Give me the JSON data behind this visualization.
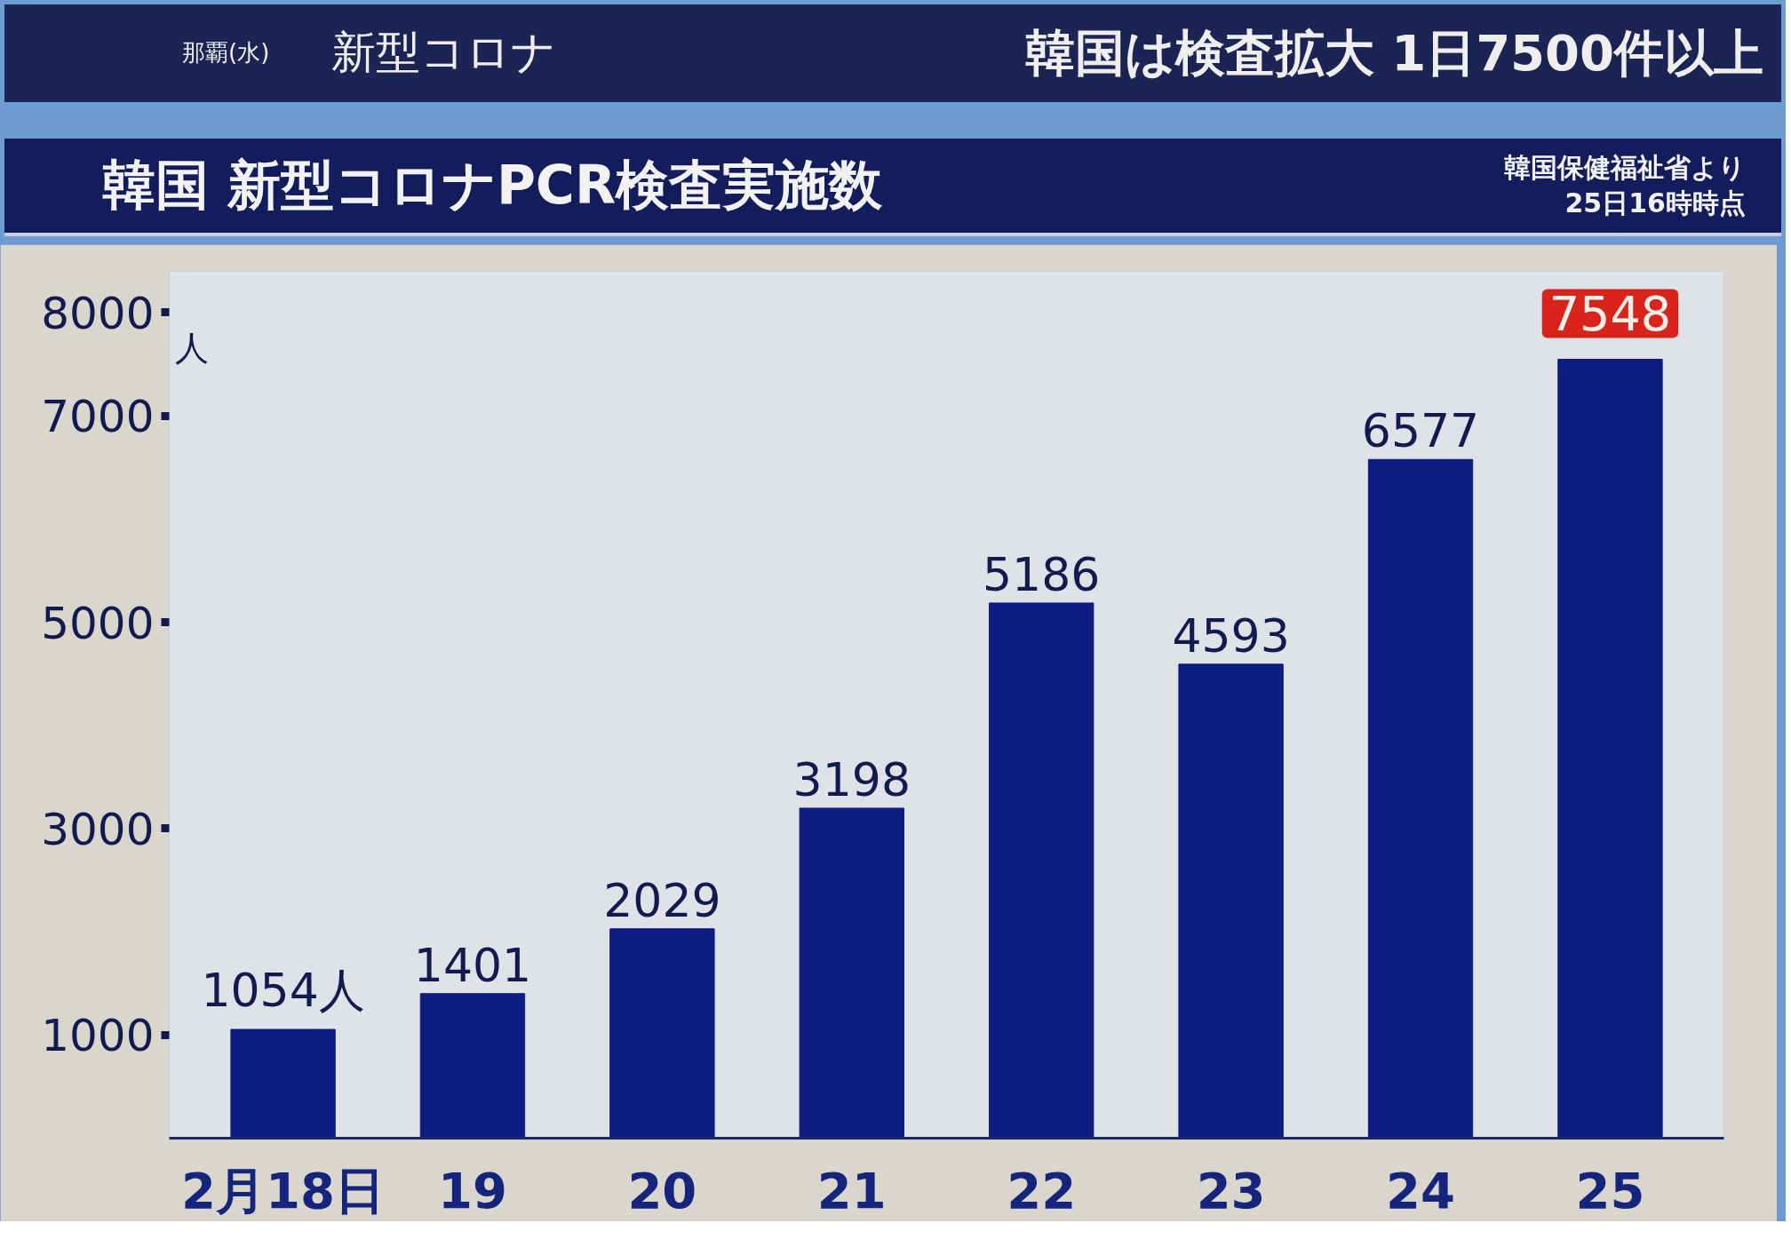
{
  "chart_data": {
    "type": "bar",
    "title": "韓国 新型コロナPCR検査実施数",
    "subtitle": "韓国は検査拡大 1日7500件以上",
    "ylabel": "人",
    "annotations": [
      "那覇(水)",
      "新型コロナ",
      "韓国保健福祉省より",
      "25日16時時点",
      {
        "text": "7548",
        "x": "25",
        "y": 7548
      }
    ],
    "categories": [
      "2月18日",
      "19",
      "20",
      "21",
      "22",
      "23",
      "24",
      "25"
    ],
    "values": [
      1054,
      1401,
      2029,
      3198,
      5186,
      4593,
      6577,
      7548
    ],
    "value_labels": [
      "1054人",
      "1401",
      "2029",
      "3198",
      "5186",
      "4593",
      "6577",
      null
    ],
    "color": "#0f1c80",
    "ylim": [
      0,
      8400
    ],
    "yticks": [
      1000,
      3000,
      5000,
      7000,
      8000
    ]
  }
}
